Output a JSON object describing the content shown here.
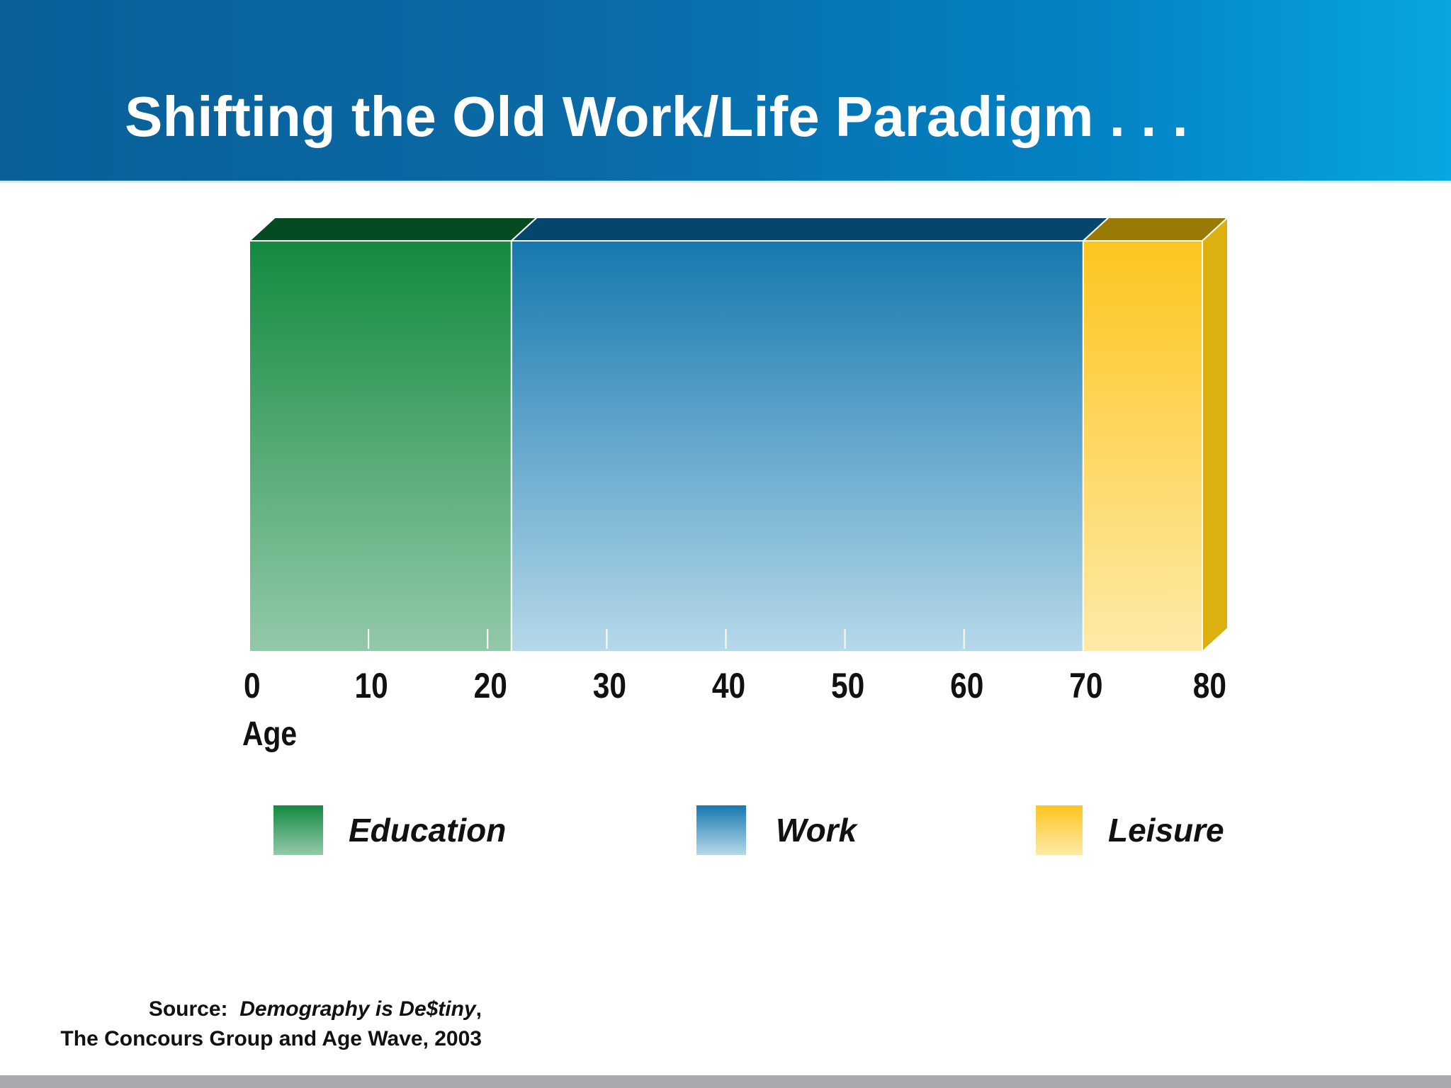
{
  "slide": {
    "title": "Shifting the Old Work/Life Paradigm . . ."
  },
  "chart_data": {
    "type": "bar",
    "orientation": "horizontal-stacked-timeline",
    "title": "Shifting the Old Work/Life Paradigm . . .",
    "xlabel": "Age",
    "ylabel": "",
    "xlim": [
      0,
      80
    ],
    "ticks": [
      "0",
      "10",
      "20",
      "30",
      "40",
      "50",
      "60",
      "70",
      "80"
    ],
    "segments": [
      {
        "name": "Education",
        "start": 0,
        "end": 22,
        "color": "#138a3f",
        "light": "#93c9a9",
        "top": "#064a22"
      },
      {
        "name": "Work",
        "start": 22,
        "end": 70,
        "color": "#1678af",
        "light": "#b6d9ea",
        "top": "#05466d"
      },
      {
        "name": "Leisure",
        "start": 70,
        "end": 80,
        "color": "#fdc51e",
        "light": "#feeaa8",
        "top": "#9a7a06"
      }
    ],
    "legend": "bottom",
    "grid": false
  },
  "source": {
    "prefix": "Source:",
    "work": "Demography is De$tiny",
    "line2": "The Concours Group and Age Wave, 2003"
  }
}
